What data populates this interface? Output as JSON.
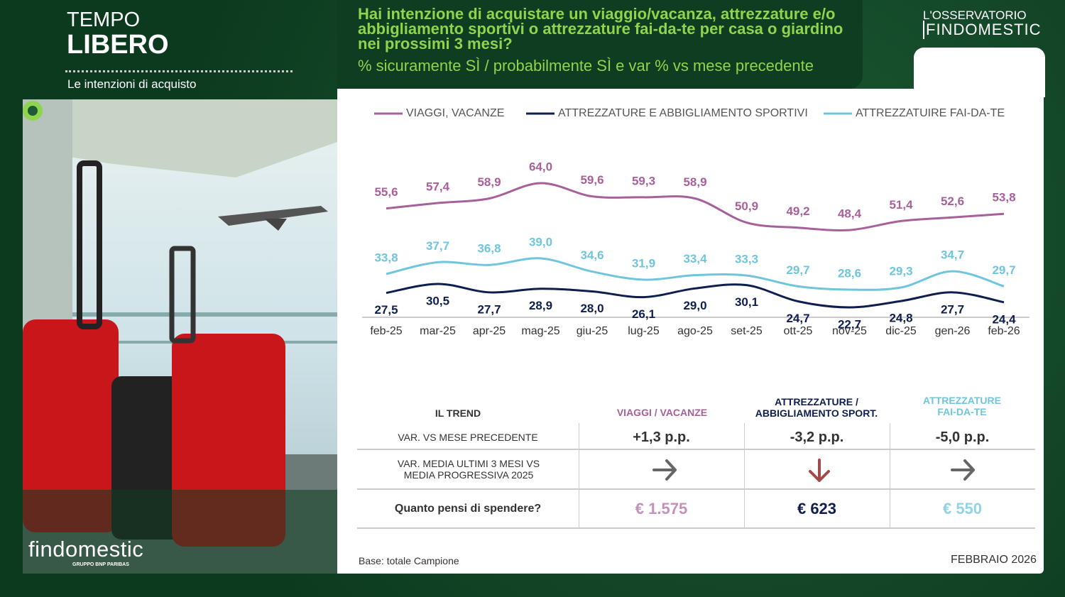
{
  "header": {
    "section_top": "TEMPO",
    "section_bottom": "LIBERO",
    "subtitle": "Le intenzioni di acquisto",
    "brand_top": "L'OSSERVATORIO",
    "brand_bottom": "FINDOMESTIC"
  },
  "chart_data": {
    "type": "line",
    "title": "Hai intenzione di acquistare un viaggio/vacanza, attrezzature e/o abbigliamento sportivi o attrezzature fai-da-te per casa o giardino nei prossimi 3 mesi?",
    "subtitle": "% sicuramente SÌ / probabilmente SÌ e var % vs mese precedente",
    "categories": [
      "feb-25",
      "mar-25",
      "apr-25",
      "mag-25",
      "giu-25",
      "lug-25",
      "ago-25",
      "set-25",
      "ott-25",
      "nov-25",
      "dic-25",
      "gen-26",
      "feb-26"
    ],
    "series": [
      {
        "name": "VIAGGI, VACANZE",
        "color": "#a8609a",
        "values": [
          55.6,
          57.4,
          58.9,
          64.0,
          59.6,
          59.3,
          58.9,
          50.9,
          49.2,
          48.4,
          51.4,
          52.6,
          53.8
        ],
        "value_labels": [
          "55,6",
          "57,4",
          "58,9",
          "64,0",
          "59,6",
          "59,3",
          "58,9",
          "50,9",
          "49,2",
          "48,4",
          "51,4",
          "52,6",
          "53,8"
        ]
      },
      {
        "name": "ATTREZZATURE E ABBIGLIAMENTO SPORTIVI",
        "color": "#0e1f4f",
        "values": [
          27.5,
          30.5,
          27.7,
          28.9,
          28.0,
          26.1,
          29.0,
          30.1,
          24.7,
          22.7,
          24.8,
          27.7,
          24.4
        ],
        "value_labels": [
          "27,5",
          "30,5",
          "27,7",
          "28,9",
          "28,0",
          "26,1",
          "29,0",
          "30,1",
          "24,7",
          "22,7",
          "24,8",
          "27,7",
          "24,4"
        ]
      },
      {
        "name": "ATTREZZATUIRE FAI-DA-TE",
        "color": "#6fc5dc",
        "values": [
          33.8,
          37.7,
          36.8,
          39.0,
          34.6,
          31.9,
          33.4,
          33.3,
          29.7,
          28.6,
          29.3,
          34.7,
          29.7
        ],
        "value_labels": [
          "33,8",
          "37,7",
          "36,8",
          "39,0",
          "34,6",
          "31,9",
          "33,4",
          "33,3",
          "29,7",
          "28,6",
          "29,3",
          "34,7",
          "29,7"
        ]
      }
    ]
  },
  "table": {
    "header": [
      "IL TREND",
      "VIAGGI / VACANZE",
      "ATTREZZATURE / ABBIGLIAMENTO SPORT.",
      "ATTREZZATURE FAI-DA-TE"
    ],
    "rows": [
      [
        "VAR. VS MESE PRECEDENTE",
        "+1,3 p.p.",
        "-3,2 p.p.",
        "-5,0 p.p."
      ],
      [
        "VAR.  MEDIA ULTIMI 3 MESI VS MEDIA PROGRESSIVA  2025"
      ],
      [
        "Quanto pensi di spendere?",
        "€ 1.575",
        "€ 623",
        "€ 550"
      ]
    ]
  },
  "footer": {
    "base": "Base: totale Campione",
    "date": "FEBBRAIO 2026",
    "logo": "findomestic",
    "logo_sub": "GRUPPO BNP PARIBAS"
  }
}
